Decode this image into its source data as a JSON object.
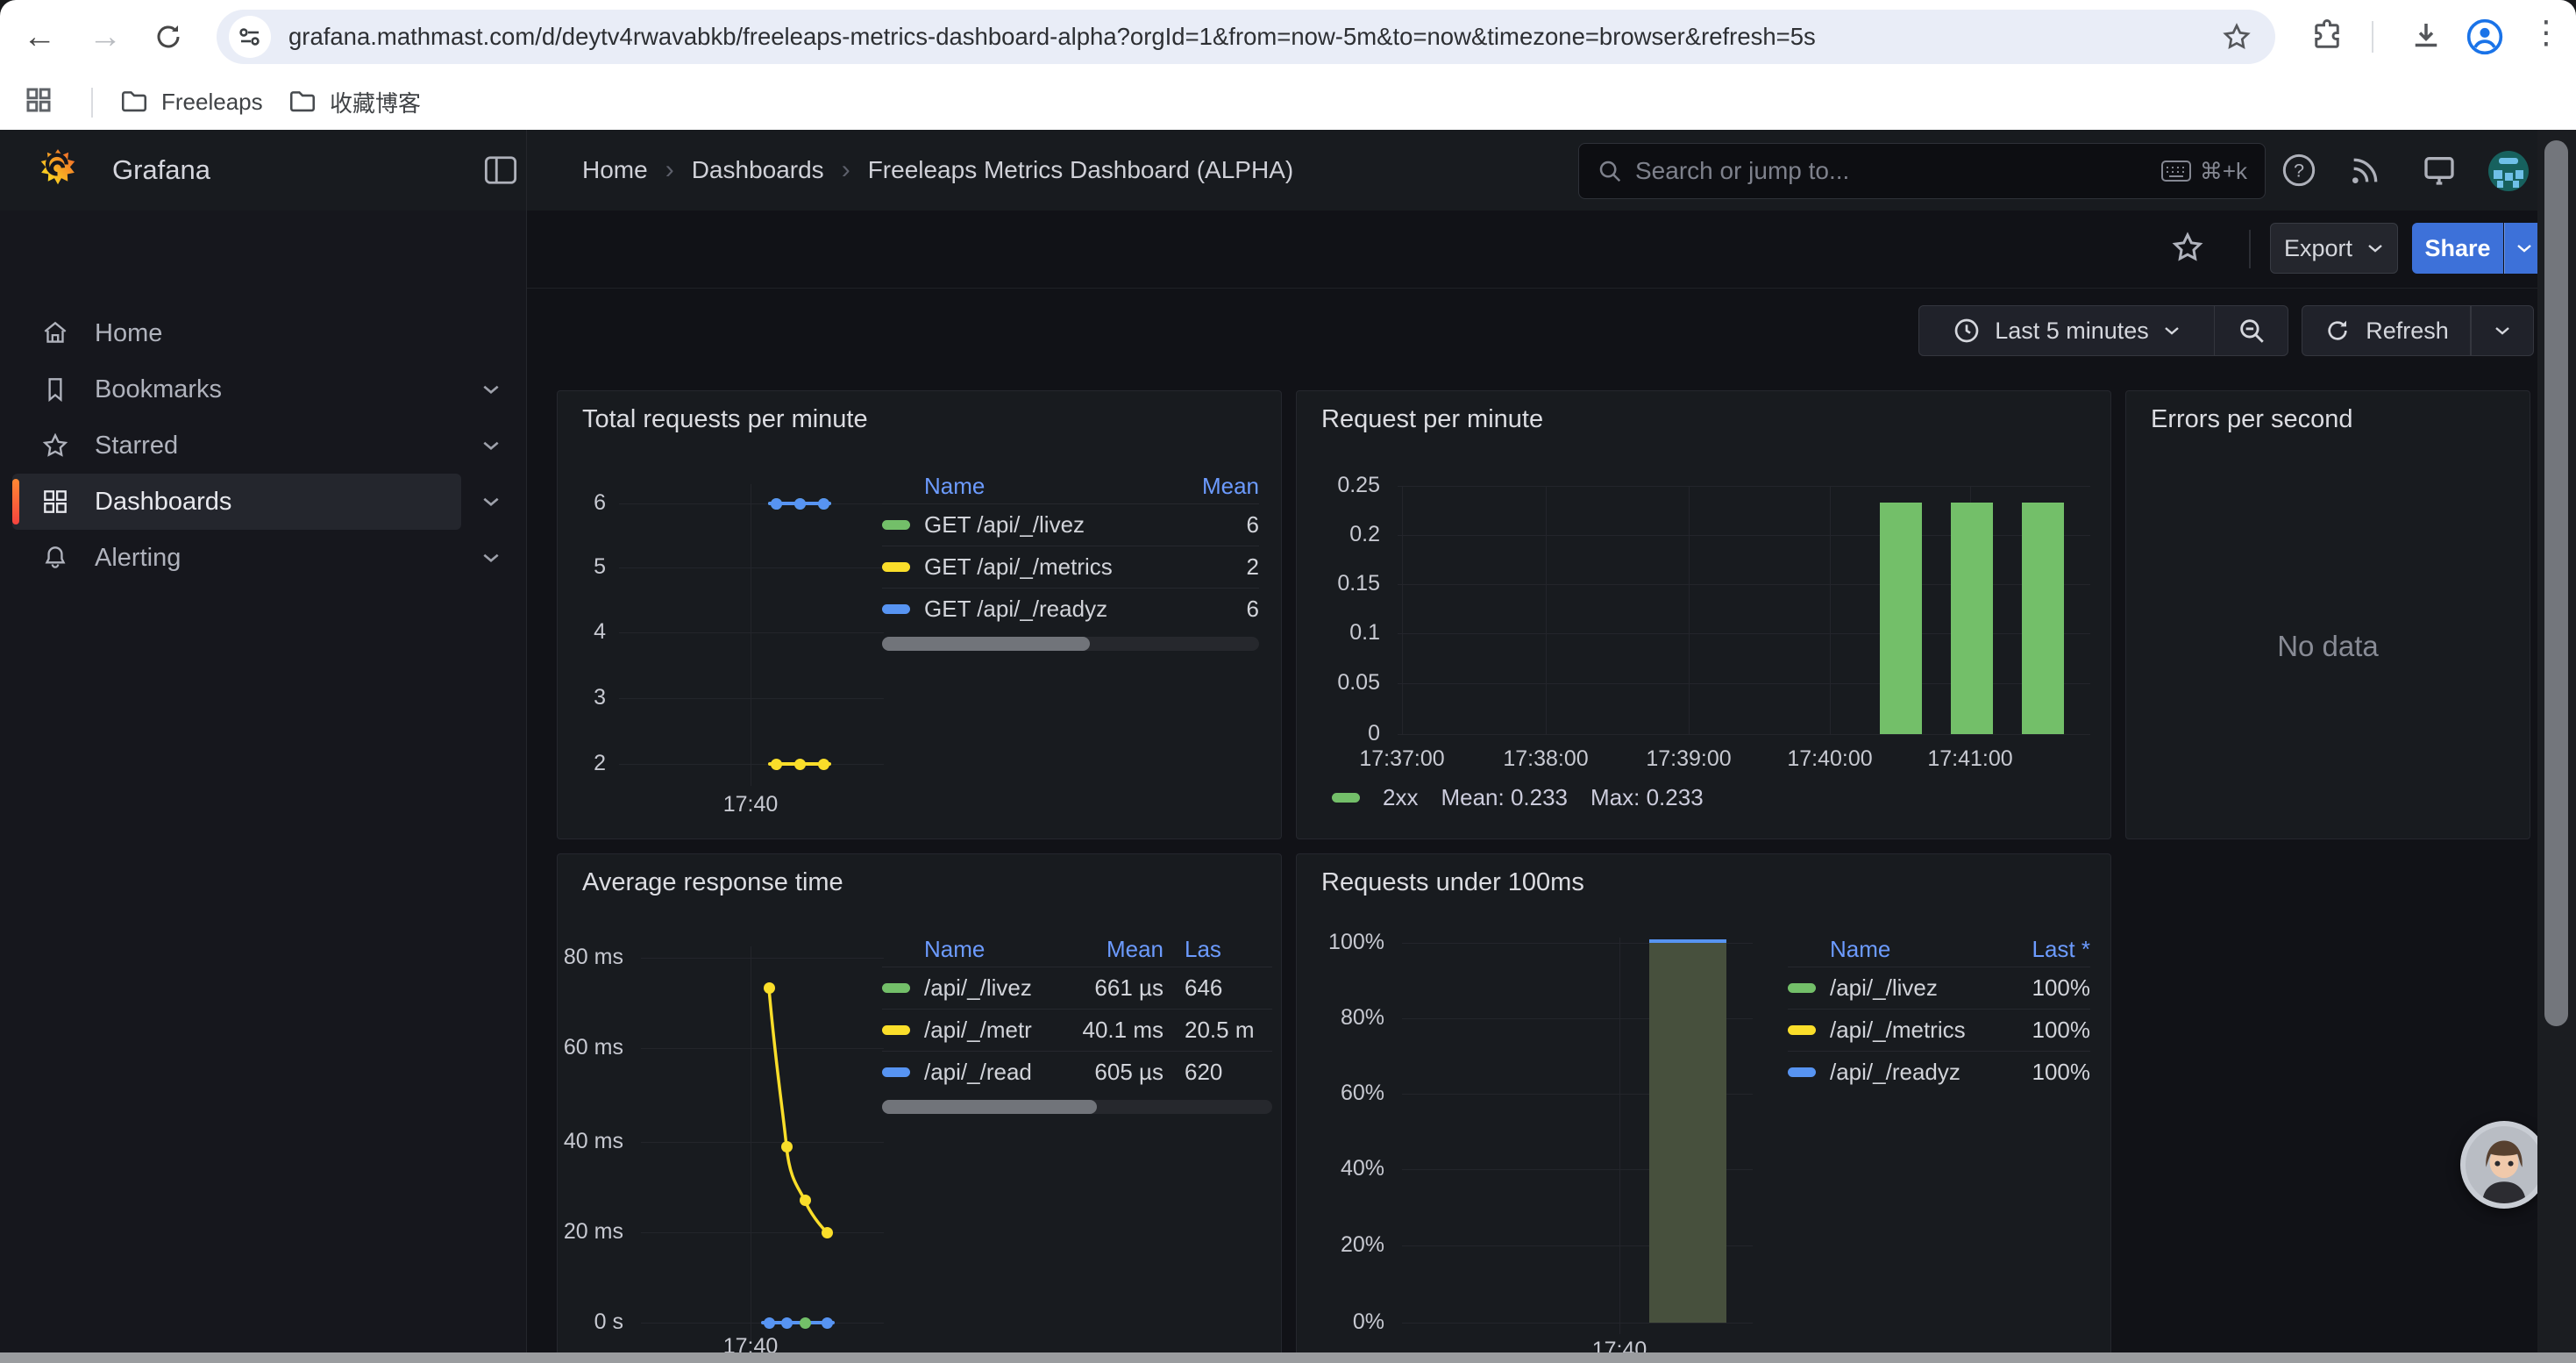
{
  "browser": {
    "url": "grafana.mathmast.com/d/deytv4rwavabkb/freeleaps-metrics-dashboard-alpha?orgId=1&from=now-5m&to=now&timezone=browser&refresh=5s",
    "bookmarks": [
      {
        "label": "Freeleaps"
      },
      {
        "label": "收藏博客"
      }
    ]
  },
  "nav": {
    "brand": "Grafana",
    "breadcrumb": [
      "Home",
      "Dashboards",
      "Freeleaps Metrics Dashboard (ALPHA)"
    ],
    "search_placeholder": "Search or jump to...",
    "search_shortcut": "⌘+k"
  },
  "sidebar": {
    "items": [
      {
        "label": "Home",
        "icon": "home-icon",
        "chevron": false,
        "active": false
      },
      {
        "label": "Bookmarks",
        "icon": "bookmark-icon",
        "chevron": true,
        "active": false
      },
      {
        "label": "Starred",
        "icon": "star-icon",
        "chevron": true,
        "active": false
      },
      {
        "label": "Dashboards",
        "icon": "grid-icon",
        "chevron": true,
        "active": true
      },
      {
        "label": "Alerting",
        "icon": "bell-icon",
        "chevron": true,
        "active": false
      }
    ]
  },
  "toolbar": {
    "export_label": "Export",
    "share_label": "Share"
  },
  "timebar": {
    "range_label": "Last 5 minutes",
    "refresh_label": "Refresh"
  },
  "colors": {
    "green": "#73bf69",
    "yellow": "#fade2a",
    "blue": "#5794f2",
    "share_blue": "#3d71d9",
    "accent_orange": "#ff8833",
    "bar_fill_olive": "#47503d"
  },
  "panels": {
    "total_requests": {
      "title": "Total requests per minute",
      "chart": {
        "type": "line",
        "y_ticks": [
          "6",
          "5",
          "4",
          "3",
          "2"
        ],
        "x_ticks": [
          "17:40"
        ],
        "ylim": [
          2,
          6
        ],
        "series": [
          {
            "name": "GET /api/_/livez",
            "color": "#73bf69",
            "values": [
              6,
              6,
              6
            ]
          },
          {
            "name": "GET /api/_/metrics",
            "color": "#fade2a",
            "values": [
              2,
              2,
              2
            ]
          },
          {
            "name": "GET /api/_/readyz",
            "color": "#5794f2",
            "values": [
              6,
              6,
              6
            ]
          }
        ]
      },
      "legend": {
        "headers": [
          "Name",
          "Mean"
        ],
        "rows": [
          {
            "color": "#73bf69",
            "name": "GET /api/_/livez",
            "cells": [
              "6"
            ]
          },
          {
            "color": "#fade2a",
            "name": "GET /api/_/metrics",
            "cells": [
              "2"
            ]
          },
          {
            "color": "#5794f2",
            "name": "GET /api/_/readyz",
            "cells": [
              "6"
            ]
          }
        ],
        "scrollbar": 0.55
      }
    },
    "request_per_minute": {
      "title": "Request per minute",
      "chart": {
        "type": "bar",
        "y_ticks": [
          "0.25",
          "0.2",
          "0.15",
          "0.1",
          "0.05",
          "0"
        ],
        "x_ticks": [
          "17:37:00",
          "17:38:00",
          "17:39:00",
          "17:40:00",
          "17:41:00"
        ],
        "ylim": [
          0,
          0.25
        ],
        "series": [
          {
            "name": "2xx",
            "color": "#73bf69",
            "values": [
              0.233,
              0.233,
              0.233
            ]
          }
        ]
      },
      "legend_inline": {
        "name": "2xx",
        "stats": [
          "Mean: 0.233",
          "Max: 0.233"
        ]
      }
    },
    "errors_per_second": {
      "title": "Errors per second",
      "no_data": "No data"
    },
    "avg_response": {
      "title": "Average response time",
      "chart": {
        "type": "line",
        "y_ticks": [
          "80 ms",
          "60 ms",
          "40 ms",
          "20 ms",
          "0 s"
        ],
        "x_ticks": [
          "17:40"
        ],
        "ylim_ms": [
          0,
          80
        ],
        "series": [
          {
            "name": "/api/_/metrics",
            "color": "#fade2a",
            "values_ms": [
              74,
              39,
              27,
              20
            ]
          },
          {
            "name": "/api/_/livez + /api/_/readyz (≈0)",
            "color": "#5794f2",
            "values_ms": [
              0,
              0,
              0,
              0
            ],
            "dot_colors": [
              "#5794f2",
              "#5794f2",
              "#73bf69",
              "#5794f2"
            ]
          }
        ]
      },
      "legend": {
        "headers": [
          "Name",
          "Mean",
          "Las"
        ],
        "rows": [
          {
            "color": "#73bf69",
            "name": "/api/_/livez",
            "cells": [
              "661 µs",
              "646"
            ]
          },
          {
            "color": "#fade2a",
            "name": "/api/_/metrics",
            "cells": [
              "40.1 ms",
              "20.5 m"
            ]
          },
          {
            "color": "#5794f2",
            "name": "/api/_/readyz",
            "cells": [
              "605 µs",
              "620"
            ]
          }
        ],
        "scrollbar": 0.55
      }
    },
    "under_100ms": {
      "title": "Requests under 100ms",
      "chart": {
        "type": "bar",
        "y_ticks": [
          "100%",
          "80%",
          "60%",
          "40%",
          "20%",
          "0%"
        ],
        "x_ticks": [
          "17:40"
        ],
        "ylim_pct": [
          0,
          100
        ],
        "bar_value_pct": 100,
        "bar_fill": "#47503d",
        "top_line_color": "#5794f2"
      },
      "legend": {
        "headers": [
          "Name",
          "Last *"
        ],
        "rows": [
          {
            "color": "#73bf69",
            "name": "/api/_/livez",
            "cells": [
              "100%"
            ]
          },
          {
            "color": "#fade2a",
            "name": "/api/_/metrics",
            "cells": [
              "100%"
            ]
          },
          {
            "color": "#5794f2",
            "name": "/api/_/readyz",
            "cells": [
              "100%"
            ]
          }
        ]
      }
    }
  }
}
